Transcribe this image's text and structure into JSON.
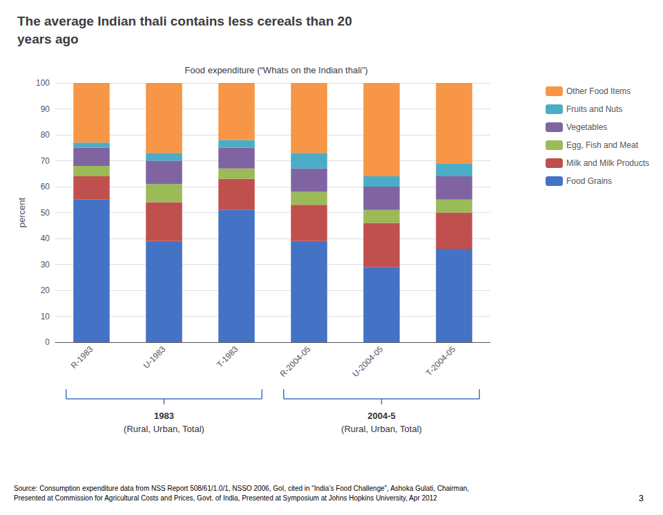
{
  "chart_data": {
    "type": "bar",
    "title": "The average Indian thali contains less cereals than 20\nyears ago",
    "subtitle": "Food expenditure (“Whats on the Indian thali”)",
    "ylabel": "percent",
    "categories": [
      "R-1983",
      "U-1983",
      "T-1983",
      "R-2004-05",
      "U-2004-05",
      "T-2004-05"
    ],
    "series": [
      {
        "name": "Food Grains",
        "color": "#4472C4",
        "values": [
          55,
          39,
          51,
          39,
          29,
          36
        ]
      },
      {
        "name": "Milk and Milk Products",
        "color": "#C0504D",
        "values": [
          9,
          15,
          12,
          14,
          17,
          14
        ]
      },
      {
        "name": "Egg, Fish and Meat",
        "color": "#9BBB59",
        "values": [
          4,
          7,
          4,
          5,
          5,
          5
        ]
      },
      {
        "name": "Vegetables",
        "color": "#8064A2",
        "values": [
          7,
          9,
          8,
          9,
          9,
          9
        ]
      },
      {
        "name": "Fruits and Nuts",
        "color": "#4BACC6",
        "values": [
          2,
          3,
          3,
          6,
          4,
          5
        ]
      },
      {
        "name": "Other Food Items",
        "color": "#F79646",
        "values": [
          23,
          27,
          22,
          27,
          36,
          31
        ]
      }
    ],
    "stacked": true,
    "ylim": [
      0,
      100
    ],
    "yticks": [
      0,
      10,
      20,
      30,
      40,
      50,
      60,
      70,
      80,
      90,
      100
    ],
    "grid": true,
    "legend": "right",
    "annotations": [
      "1983",
      "(Rural, Urban, Total)",
      "2004-5",
      "(Rural, Urban, Total)",
      "Source: Consumption expenditure data from NSS Report 508/61/1.0/1, NSSO 2006, GoI, cited in “India’s Food Challenge”, Ashoka Gulati, Chairman,\nPresented at Commission for Agricultural Costs and Prices, Govt. of India, Presented at Symposium at Johns Hopkins University, Apr 2012",
      "3"
    ]
  }
}
